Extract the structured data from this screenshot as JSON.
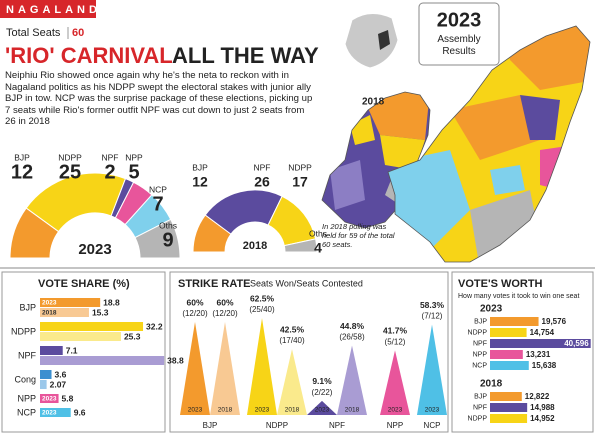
{
  "header": {
    "state": "NAGALAND",
    "total_label": "Total Seats",
    "total_seats": 60,
    "title_red": "'RIO' CARNIVAL",
    "title_black": "ALL THE WAY",
    "intro": "Neiphiu Rio showed once again why he's the neta to reckon with in Nagaland politics as his NDPP swept the electoral stakes with junior ally BJP in tow. NCP was the surprise package of these elections, picking up 7 seats while Rio's former outfit NPF was cut down to just 2 seats from 26 in 2018"
  },
  "badge": {
    "year": "2023",
    "subtitle": "Assembly Results"
  },
  "maps": {
    "label_2018": "2018",
    "note": "In 2018 polling was held for 59 of the total 60 seats."
  },
  "chart_data": [
    {
      "type": "half-donut",
      "label": "2023",
      "categories": [
        "BJP",
        "NDPP",
        "NPF",
        "NPP",
        "NCP",
        "Oths"
      ],
      "values": [
        12,
        25,
        2,
        5,
        7,
        9
      ],
      "colors": [
        "#f39a2d",
        "#f7d417",
        "#5b4b9e",
        "#e8559b",
        "#7fd0ec",
        "#b5b5b5"
      ]
    },
    {
      "type": "half-donut",
      "label": "2018",
      "categories": [
        "BJP",
        "NPF",
        "NDPP",
        "Oths"
      ],
      "values": [
        12,
        26,
        17,
        4
      ],
      "colors": [
        "#f39a2d",
        "#5b4b9e",
        "#f7d417",
        "#b5b5b5"
      ]
    },
    {
      "type": "hbar",
      "title": "VOTE SHARE (%)",
      "categories": [
        "BJP",
        "NDPP",
        "NPF",
        "Cong",
        "NPP",
        "NCP"
      ],
      "series": [
        {
          "name": "2023",
          "colors": [
            "#f39a2d",
            "#f7d417",
            "#5b4b9e",
            "#3b8fd0",
            "#e8559b",
            "#4fc0e6"
          ],
          "values": [
            18.8,
            32.2,
            7.1,
            3.6,
            5.8,
            9.6
          ]
        },
        {
          "name": "2018",
          "colors": [
            "#f8c993",
            "#faea8c",
            "#a99cd3",
            "#9cc8ea",
            "#f2a9cb",
            "#a9def2"
          ],
          "values": [
            15.3,
            25.3,
            38.8,
            2.07,
            null,
            null
          ]
        }
      ]
    },
    {
      "type": "spike",
      "title": "STRIKE RATE",
      "subtitle": "Seats Won/Seats Contested",
      "categories": [
        "BJP",
        "NDPP",
        "NPF",
        "NPP",
        "NCP"
      ],
      "series": [
        {
          "name": "2023",
          "colors": [
            "#f39a2d",
            "#f7d417",
            "#5b4b9e",
            "#e8559b",
            "#4fc0e6"
          ],
          "values": [
            60,
            62.5,
            9.1,
            41.7,
            58.3
          ],
          "value_labels": [
            "60%",
            "62.5%",
            "9.1%",
            "41.7%",
            "58.3%"
          ],
          "ratios": [
            "(12/20)",
            "(25/40)",
            "(2/22)",
            "(5/12)",
            "(7/12)"
          ]
        },
        {
          "name": "2018",
          "colors": [
            "#f8c993",
            "#faea8c",
            "#a99cd3",
            null,
            null
          ],
          "values": [
            60,
            42.5,
            44.8,
            null,
            null
          ],
          "value_labels": [
            "60%",
            "42.5%",
            "44.8%",
            null,
            null
          ],
          "ratios": [
            "(12/20)",
            "(17/40)",
            "(26/58)",
            null,
            null
          ]
        }
      ]
    },
    {
      "type": "hbar-groups",
      "title": "VOTE'S WORTH",
      "subtitle": "How many votes it took to win one seat",
      "groups": [
        {
          "name": "2023",
          "categories": [
            "BJP",
            "NDPP",
            "NPF",
            "NPP",
            "NCP"
          ],
          "colors": [
            "#f39a2d",
            "#f7d417",
            "#5b4b9e",
            "#e8559b",
            "#4fc0e6"
          ],
          "values": [
            19576,
            14754,
            40596,
            13231,
            15638
          ],
          "value_labels": [
            "19,576",
            "14,754",
            "40,596",
            "13,231",
            "15,638"
          ]
        },
        {
          "name": "2018",
          "categories": [
            "BJP",
            "NPF",
            "NDPP"
          ],
          "colors": [
            "#f39a2d",
            "#5b4b9e",
            "#f7d417"
          ],
          "values": [
            12822,
            14988,
            14952
          ],
          "value_labels": [
            "12,822",
            "14,988",
            "14,952"
          ]
        }
      ]
    }
  ]
}
